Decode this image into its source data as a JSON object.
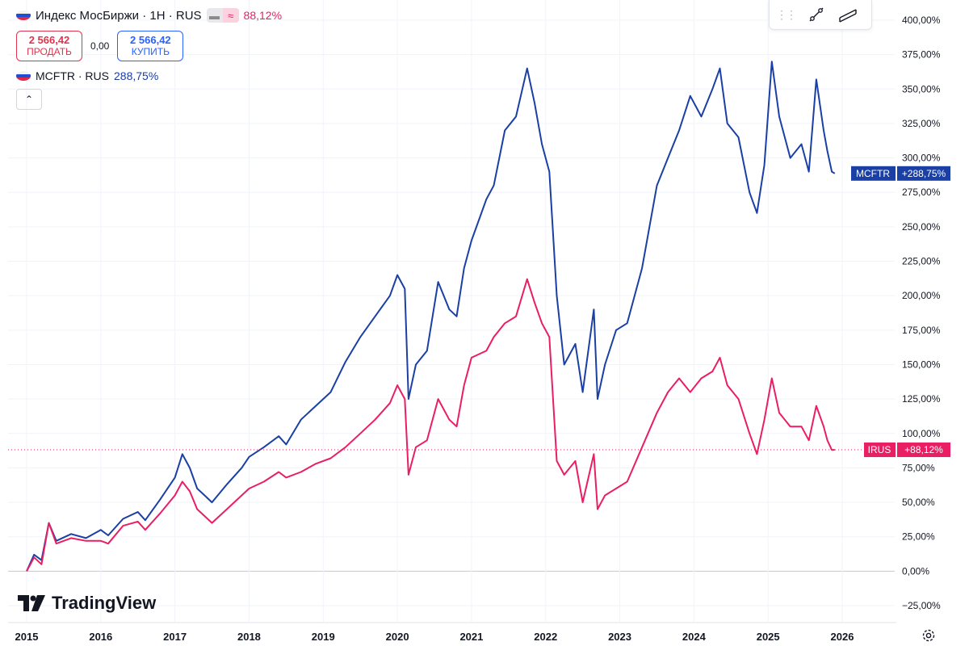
{
  "header": {
    "title": "Индекс МосБиржи · 1Н · RUS",
    "change_pct": "88,12%",
    "sell_price": "2 566,42",
    "sell_label": "ПРОДАТЬ",
    "spread": "0,00",
    "buy_price": "2 566,42",
    "buy_label": "КУПИТЬ",
    "compare_symbol": "MCFTR · RUS",
    "compare_pct": "288,75%"
  },
  "brand": {
    "logo_text": "TradingView"
  },
  "colors": {
    "mcftr": "#1a3fa5",
    "irus": "#e91e63",
    "grid": "#f0f3fa",
    "zero": "#c7c8cc"
  },
  "chart_data": {
    "type": "line",
    "title": "Индекс МосБиржи · 1Н · RUS",
    "ylabel": "%",
    "ylim": [
      -30,
      410
    ],
    "xlim": [
      2015.0,
      2026.3
    ],
    "y_ticks": [
      "400,00%",
      "375,00%",
      "350,00%",
      "325,00%",
      "300,00%",
      "275,00%",
      "250,00%",
      "225,00%",
      "200,00%",
      "175,00%",
      "150,00%",
      "125,00%",
      "100,00%",
      "75,00%",
      "50,00%",
      "25,00%",
      "0,00%",
      "−25,00%"
    ],
    "y_tick_values": [
      400,
      375,
      350,
      325,
      300,
      275,
      250,
      225,
      200,
      175,
      150,
      125,
      100,
      75,
      50,
      25,
      0,
      -25
    ],
    "x_ticks": [
      "2015",
      "2016",
      "2017",
      "2018",
      "2019",
      "2020",
      "2021",
      "2022",
      "2023",
      "2024",
      "2025",
      "2026"
    ],
    "x_tick_values": [
      2015,
      2016,
      2017,
      2018,
      2019,
      2020,
      2021,
      2022,
      2023,
      2024,
      2025,
      2026
    ],
    "series": [
      {
        "name": "MCFTR",
        "label": "MCFTR",
        "last_label": "+288,75%",
        "last": 288.75,
        "points": [
          [
            2015.0,
            0
          ],
          [
            2015.1,
            12
          ],
          [
            2015.2,
            8
          ],
          [
            2015.3,
            35
          ],
          [
            2015.4,
            22
          ],
          [
            2015.6,
            27
          ],
          [
            2015.8,
            24
          ],
          [
            2016.0,
            30
          ],
          [
            2016.1,
            26
          ],
          [
            2016.3,
            38
          ],
          [
            2016.5,
            43
          ],
          [
            2016.6,
            37
          ],
          [
            2016.8,
            52
          ],
          [
            2017.0,
            68
          ],
          [
            2017.1,
            85
          ],
          [
            2017.2,
            75
          ],
          [
            2017.3,
            60
          ],
          [
            2017.4,
            55
          ],
          [
            2017.5,
            50
          ],
          [
            2017.7,
            63
          ],
          [
            2017.9,
            75
          ],
          [
            2018.0,
            83
          ],
          [
            2018.2,
            90
          ],
          [
            2018.4,
            98
          ],
          [
            2018.5,
            92
          ],
          [
            2018.7,
            110
          ],
          [
            2018.9,
            120
          ],
          [
            2019.1,
            130
          ],
          [
            2019.3,
            152
          ],
          [
            2019.5,
            170
          ],
          [
            2019.7,
            185
          ],
          [
            2019.9,
            200
          ],
          [
            2020.0,
            215
          ],
          [
            2020.1,
            205
          ],
          [
            2020.15,
            125
          ],
          [
            2020.25,
            150
          ],
          [
            2020.4,
            160
          ],
          [
            2020.55,
            210
          ],
          [
            2020.7,
            190
          ],
          [
            2020.8,
            185
          ],
          [
            2020.9,
            220
          ],
          [
            2021.0,
            240
          ],
          [
            2021.2,
            270
          ],
          [
            2021.3,
            280
          ],
          [
            2021.45,
            320
          ],
          [
            2021.6,
            330
          ],
          [
            2021.75,
            365
          ],
          [
            2021.85,
            340
          ],
          [
            2021.95,
            310
          ],
          [
            2022.05,
            290
          ],
          [
            2022.15,
            200
          ],
          [
            2022.25,
            150
          ],
          [
            2022.4,
            165
          ],
          [
            2022.5,
            130
          ],
          [
            2022.65,
            190
          ],
          [
            2022.7,
            125
          ],
          [
            2022.8,
            150
          ],
          [
            2022.95,
            175
          ],
          [
            2023.1,
            180
          ],
          [
            2023.3,
            220
          ],
          [
            2023.5,
            280
          ],
          [
            2023.65,
            300
          ],
          [
            2023.8,
            320
          ],
          [
            2023.95,
            345
          ],
          [
            2024.1,
            330
          ],
          [
            2024.25,
            350
          ],
          [
            2024.35,
            365
          ],
          [
            2024.45,
            325
          ],
          [
            2024.6,
            315
          ],
          [
            2024.75,
            275
          ],
          [
            2024.85,
            260
          ],
          [
            2024.95,
            295
          ],
          [
            2025.05,
            370
          ],
          [
            2025.15,
            330
          ],
          [
            2025.3,
            300
          ],
          [
            2025.45,
            310
          ],
          [
            2025.55,
            290
          ],
          [
            2025.65,
            357
          ],
          [
            2025.75,
            320
          ],
          [
            2025.8,
            305
          ],
          [
            2025.86,
            290
          ],
          [
            2025.9,
            288.75
          ]
        ]
      },
      {
        "name": "IRUS",
        "label": "IRUS",
        "last_label": "+88,12%",
        "last": 88.12,
        "points": [
          [
            2015.0,
            0
          ],
          [
            2015.1,
            10
          ],
          [
            2015.2,
            5
          ],
          [
            2015.3,
            35
          ],
          [
            2015.4,
            20
          ],
          [
            2015.6,
            24
          ],
          [
            2015.8,
            22
          ],
          [
            2016.0,
            22
          ],
          [
            2016.1,
            20
          ],
          [
            2016.3,
            33
          ],
          [
            2016.5,
            36
          ],
          [
            2016.6,
            30
          ],
          [
            2016.8,
            42
          ],
          [
            2017.0,
            55
          ],
          [
            2017.1,
            65
          ],
          [
            2017.2,
            58
          ],
          [
            2017.3,
            45
          ],
          [
            2017.4,
            40
          ],
          [
            2017.5,
            35
          ],
          [
            2017.7,
            45
          ],
          [
            2017.9,
            55
          ],
          [
            2018.0,
            60
          ],
          [
            2018.2,
            65
          ],
          [
            2018.4,
            72
          ],
          [
            2018.5,
            68
          ],
          [
            2018.7,
            72
          ],
          [
            2018.9,
            78
          ],
          [
            2019.1,
            82
          ],
          [
            2019.3,
            90
          ],
          [
            2019.5,
            100
          ],
          [
            2019.7,
            110
          ],
          [
            2019.9,
            122
          ],
          [
            2020.0,
            135
          ],
          [
            2020.1,
            125
          ],
          [
            2020.15,
            70
          ],
          [
            2020.25,
            90
          ],
          [
            2020.4,
            95
          ],
          [
            2020.55,
            125
          ],
          [
            2020.7,
            110
          ],
          [
            2020.8,
            105
          ],
          [
            2020.9,
            135
          ],
          [
            2021.0,
            155
          ],
          [
            2021.2,
            160
          ],
          [
            2021.3,
            170
          ],
          [
            2021.45,
            180
          ],
          [
            2021.6,
            185
          ],
          [
            2021.75,
            212
          ],
          [
            2021.85,
            195
          ],
          [
            2021.95,
            180
          ],
          [
            2022.05,
            170
          ],
          [
            2022.15,
            80
          ],
          [
            2022.25,
            70
          ],
          [
            2022.4,
            80
          ],
          [
            2022.5,
            50
          ],
          [
            2022.65,
            85
          ],
          [
            2022.7,
            45
          ],
          [
            2022.8,
            55
          ],
          [
            2022.95,
            60
          ],
          [
            2023.1,
            65
          ],
          [
            2023.3,
            90
          ],
          [
            2023.5,
            115
          ],
          [
            2023.65,
            130
          ],
          [
            2023.8,
            140
          ],
          [
            2023.95,
            130
          ],
          [
            2024.1,
            140
          ],
          [
            2024.25,
            145
          ],
          [
            2024.35,
            155
          ],
          [
            2024.45,
            135
          ],
          [
            2024.6,
            125
          ],
          [
            2024.75,
            100
          ],
          [
            2024.85,
            85
          ],
          [
            2024.95,
            110
          ],
          [
            2025.05,
            140
          ],
          [
            2025.15,
            115
          ],
          [
            2025.3,
            105
          ],
          [
            2025.45,
            105
          ],
          [
            2025.55,
            95
          ],
          [
            2025.65,
            120
          ],
          [
            2025.75,
            105
          ],
          [
            2025.8,
            95
          ],
          [
            2025.86,
            88
          ],
          [
            2025.9,
            88.12
          ]
        ]
      }
    ]
  }
}
